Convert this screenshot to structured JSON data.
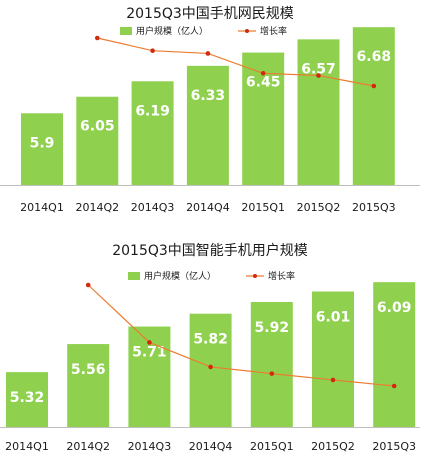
{
  "chart_data": [
    {
      "type": "bar",
      "title": "2015Q3中国手机网民规模",
      "categories": [
        "2014Q1",
        "2014Q2",
        "2014Q3",
        "2014Q4",
        "2015Q1",
        "2015Q2",
        "2015Q3"
      ],
      "series": [
        {
          "name": "用户规模（亿人）",
          "type": "bar",
          "values": [
            5.9,
            6.05,
            6.19,
            6.33,
            6.45,
            6.57,
            6.68
          ]
        },
        {
          "name": "增长率",
          "type": "line",
          "values": [
            null,
            0.0254,
            0.0231,
            0.0226,
            0.019,
            0.0186,
            0.0167
          ]
        }
      ],
      "legend": "top-right",
      "grid": false
    },
    {
      "type": "bar",
      "title": "2015Q3中国智能手机用户规模",
      "categories": [
        "2014Q1",
        "2014Q2",
        "2014Q3",
        "2014Q4",
        "2015Q1",
        "2015Q2",
        "2015Q3"
      ],
      "series": [
        {
          "name": "用户规模（亿人）",
          "type": "bar",
          "values": [
            5.32,
            5.56,
            5.71,
            5.82,
            5.92,
            6.01,
            6.09
          ]
        },
        {
          "name": "增长率",
          "type": "line",
          "values": [
            null,
            0.0451,
            0.027,
            0.0193,
            0.0172,
            0.0152,
            0.0133
          ]
        }
      ],
      "legend": "top-right",
      "grid": false
    }
  ],
  "colors": {
    "bar": "#8fd14f",
    "bar_label": "#ffffff",
    "line": "#ec7c30",
    "marker": "#d12a0c",
    "axis": "#bfbfbf",
    "text": "#1a1a1a"
  }
}
